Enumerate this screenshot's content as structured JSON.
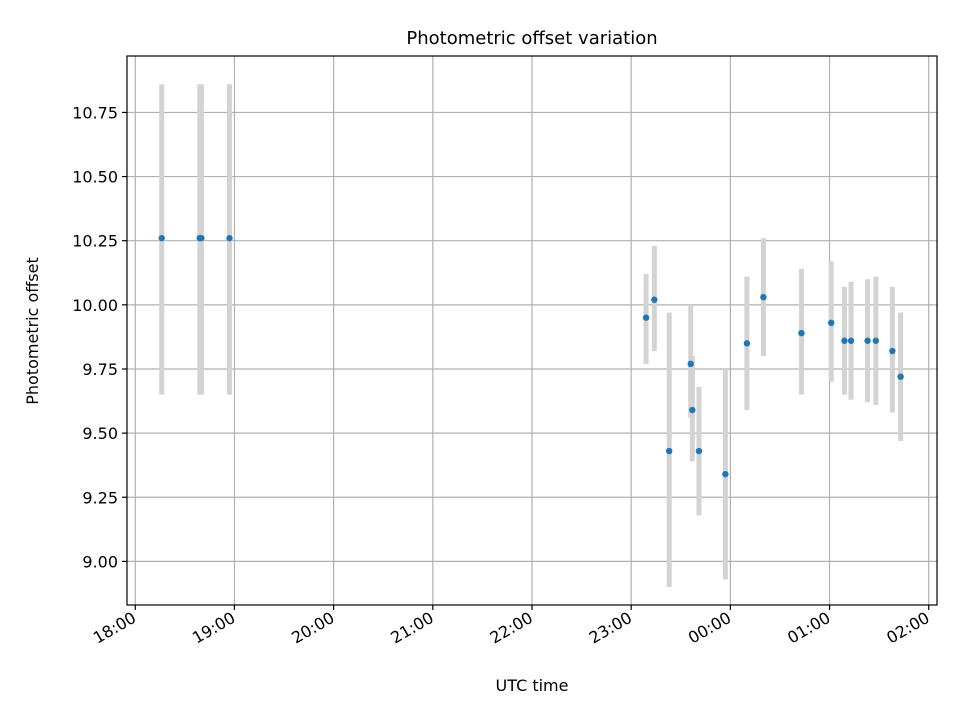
{
  "chart_data": {
    "type": "scatter",
    "title": "Photometric offset variation",
    "xlabel": "UTC time",
    "ylabel": "Photometric offset",
    "grid": true,
    "xlim": [
      "17:55",
      "02:05"
    ],
    "ylim": [
      8.83,
      10.97
    ],
    "x_ticks": [
      "18:00",
      "19:00",
      "20:00",
      "21:00",
      "22:00",
      "23:00",
      "00:00",
      "01:00",
      "02:00"
    ],
    "y_ticks": [
      "9.00",
      "9.25",
      "9.50",
      "9.75",
      "10.00",
      "10.25",
      "10.50",
      "10.75"
    ],
    "colors": {
      "points": "#1f77b4",
      "errorbars": "#d3d3d3",
      "grid": "#b0b0b0"
    },
    "points": [
      {
        "x": "18:16",
        "y": 10.26,
        "ylow": 9.65,
        "yhigh": 10.86
      },
      {
        "x": "18:39",
        "y": 10.26,
        "ylow": 9.65,
        "yhigh": 10.86
      },
      {
        "x": "18:40",
        "y": 10.26,
        "ylow": 9.65,
        "yhigh": 10.86
      },
      {
        "x": "18:57",
        "y": 10.26,
        "ylow": 9.65,
        "yhigh": 10.86
      },
      {
        "x": "23:09",
        "y": 9.95,
        "ylow": 9.77,
        "yhigh": 10.12
      },
      {
        "x": "23:14",
        "y": 10.02,
        "ylow": 9.82,
        "yhigh": 10.23
      },
      {
        "x": "23:23",
        "y": 9.43,
        "ylow": 8.9,
        "yhigh": 9.97
      },
      {
        "x": "23:36",
        "y": 9.77,
        "ylow": 9.56,
        "yhigh": 10.0
      },
      {
        "x": "23:37",
        "y": 9.59,
        "ylow": 9.39,
        "yhigh": 9.8
      },
      {
        "x": "23:41",
        "y": 9.43,
        "ylow": 9.18,
        "yhigh": 9.68
      },
      {
        "x": "23:57",
        "y": 9.34,
        "ylow": 8.93,
        "yhigh": 9.75
      },
      {
        "x": "00:10",
        "y": 9.85,
        "ylow": 9.59,
        "yhigh": 10.11
      },
      {
        "x": "00:20",
        "y": 10.03,
        "ylow": 9.8,
        "yhigh": 10.26
      },
      {
        "x": "00:43",
        "y": 9.89,
        "ylow": 9.65,
        "yhigh": 10.14
      },
      {
        "x": "01:01",
        "y": 9.93,
        "ylow": 9.7,
        "yhigh": 10.17
      },
      {
        "x": "01:09",
        "y": 9.86,
        "ylow": 9.65,
        "yhigh": 10.07
      },
      {
        "x": "01:13",
        "y": 9.86,
        "ylow": 9.63,
        "yhigh": 10.09
      },
      {
        "x": "01:23",
        "y": 9.86,
        "ylow": 9.62,
        "yhigh": 10.1
      },
      {
        "x": "01:28",
        "y": 9.86,
        "ylow": 9.61,
        "yhigh": 10.11
      },
      {
        "x": "01:38",
        "y": 9.82,
        "ylow": 9.58,
        "yhigh": 10.07
      },
      {
        "x": "01:43",
        "y": 9.72,
        "ylow": 9.47,
        "yhigh": 9.97
      }
    ]
  }
}
